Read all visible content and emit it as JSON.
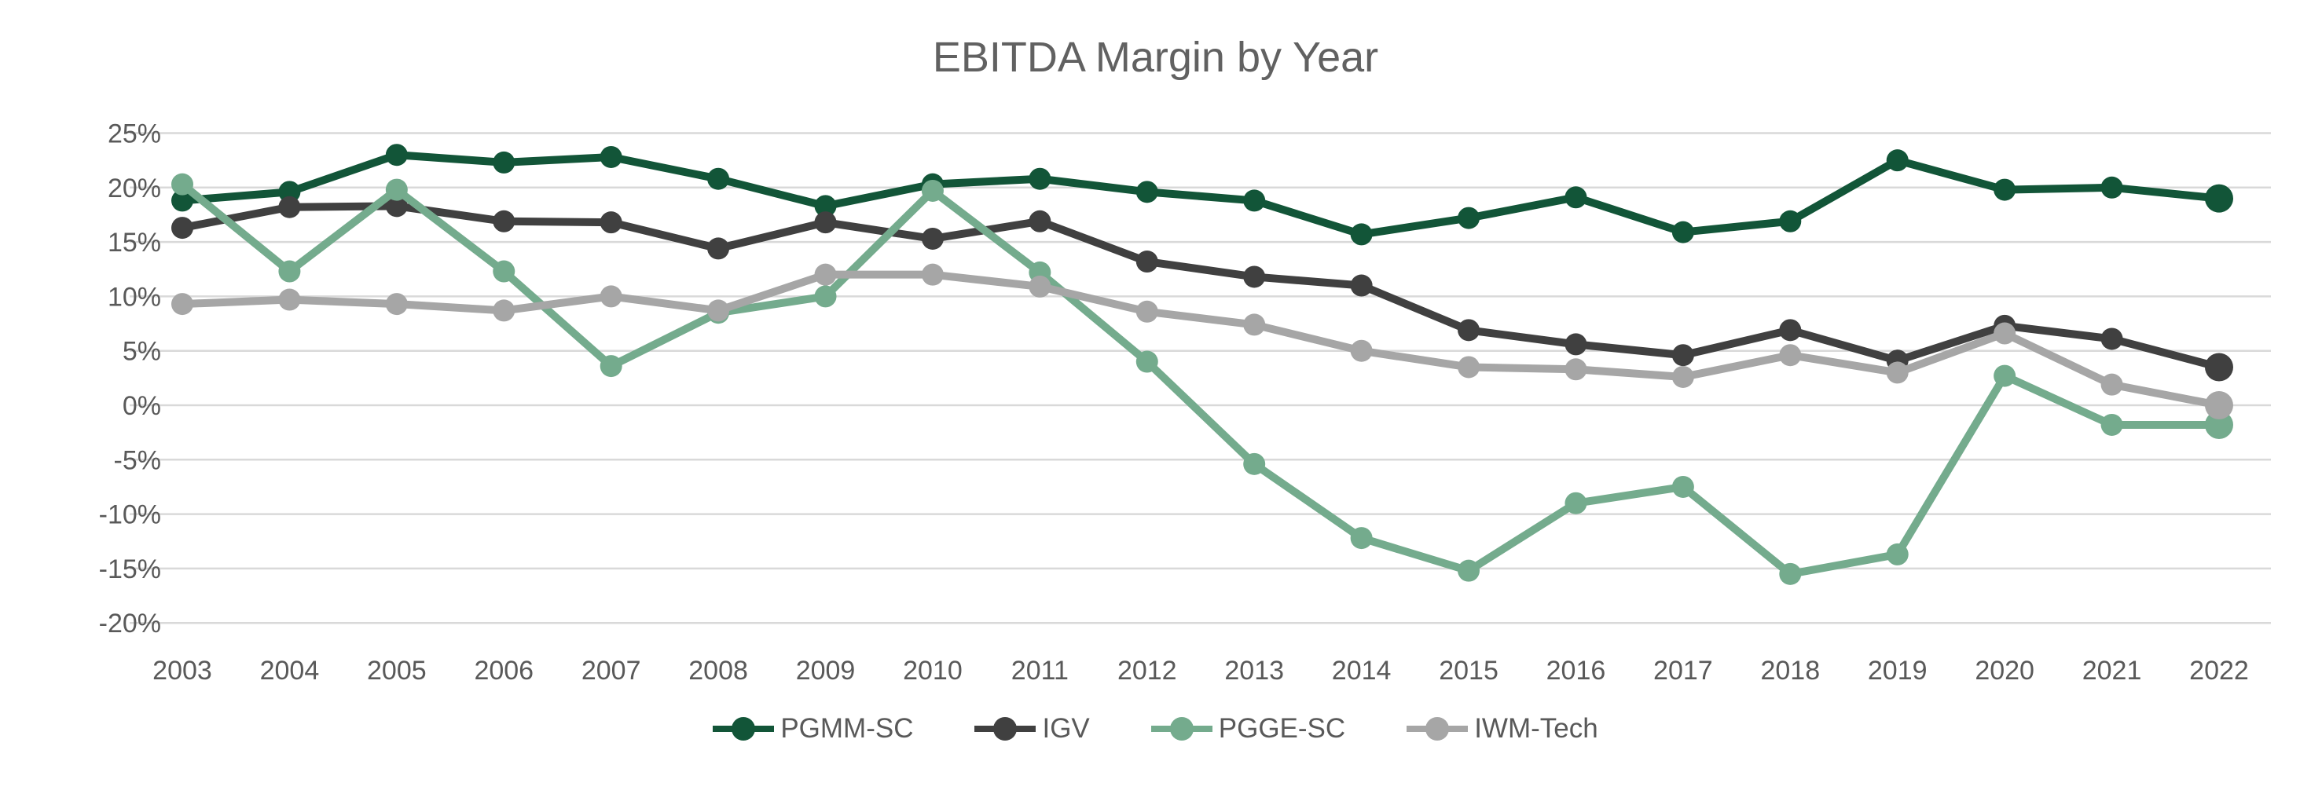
{
  "chart_data": {
    "type": "line",
    "title": "EBITDA Margin by Year",
    "xlabel": "",
    "ylabel": "",
    "categories": [
      "2003",
      "2004",
      "2005",
      "2006",
      "2007",
      "2008",
      "2009",
      "2010",
      "2011",
      "2012",
      "2013",
      "2014",
      "2015",
      "2016",
      "2017",
      "2018",
      "2019",
      "2020",
      "2021",
      "2022"
    ],
    "y_ticks": [
      "25%",
      "20%",
      "15%",
      "10%",
      "5%",
      "0%",
      "-5%",
      "-10%",
      "-15%",
      "-20%"
    ],
    "y_tick_values": [
      25,
      20,
      15,
      10,
      5,
      0,
      -5,
      -10,
      -15,
      -20
    ],
    "ylim": [
      -20,
      25
    ],
    "grid": "horizontal",
    "legend_position": "bottom",
    "series": [
      {
        "name": "PGMM-SC",
        "color": "#125538",
        "values": [
          18.8,
          19.6,
          23.0,
          22.3,
          22.8,
          20.8,
          18.3,
          20.3,
          20.8,
          19.6,
          18.8,
          15.7,
          17.2,
          19.1,
          15.9,
          16.9,
          22.5,
          19.8,
          20.0,
          19.0
        ]
      },
      {
        "name": "IGV",
        "color": "#404040",
        "values": [
          16.3,
          18.2,
          18.3,
          16.9,
          16.8,
          14.4,
          16.8,
          15.3,
          16.9,
          13.2,
          11.8,
          11.0,
          6.9,
          5.6,
          4.6,
          6.9,
          4.1,
          7.3,
          6.1,
          3.5
        ]
      },
      {
        "name": "PGGE-SC",
        "color": "#74AB8D",
        "values": [
          20.3,
          12.3,
          19.8,
          12.3,
          3.6,
          8.5,
          10.0,
          19.7,
          12.2,
          4.0,
          -5.4,
          -12.2,
          -15.2,
          -9.0,
          -7.5,
          -15.5,
          -13.7,
          2.7,
          -1.8,
          -1.8
        ]
      },
      {
        "name": "IWM-Tech",
        "color": "#A6A6A6",
        "values": [
          9.3,
          9.7,
          9.3,
          8.7,
          10.0,
          8.7,
          12.0,
          12.0,
          10.9,
          8.6,
          7.4,
          5.0,
          3.5,
          3.3,
          2.6,
          4.6,
          3.0,
          6.6,
          1.9,
          0.0
        ]
      }
    ],
    "colors": {
      "gridline": "#D9D9D9",
      "axis_text": "#595959",
      "title_text": "#616161",
      "background": "#FFFFFF"
    }
  }
}
